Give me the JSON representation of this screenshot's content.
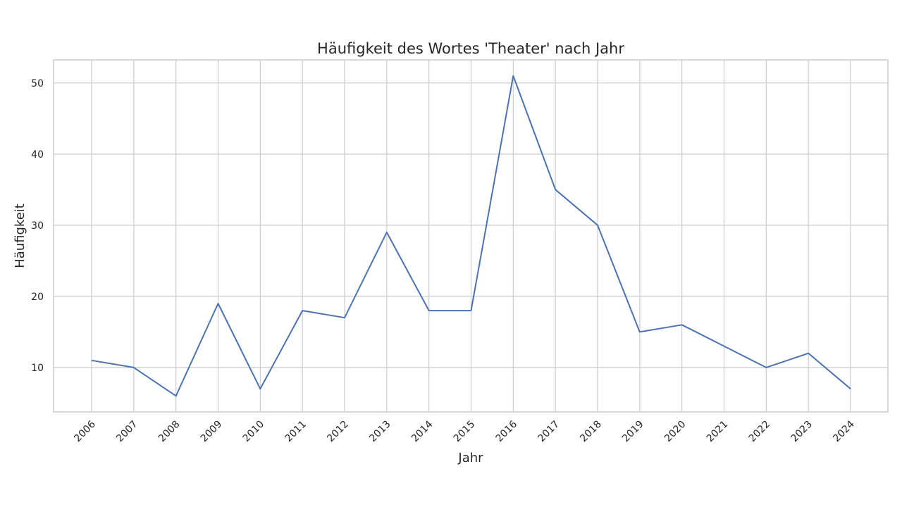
{
  "chart_data": {
    "type": "line",
    "title": "Häufigkeit des Wortes 'Theater' nach Jahr",
    "xlabel": "Jahr",
    "ylabel": "Häufigkeit",
    "categories": [
      "2006",
      "2007",
      "2008",
      "2009",
      "2010",
      "2011",
      "2012",
      "2013",
      "2014",
      "2015",
      "2016",
      "2017",
      "2018",
      "2019",
      "2020",
      "2021",
      "2022",
      "2023",
      "2024"
    ],
    "values": [
      11,
      10,
      6,
      19,
      7,
      18,
      17,
      29,
      18,
      18,
      51,
      35,
      30,
      15,
      16,
      13,
      10,
      12,
      7
    ],
    "ylim": [
      3.75,
      53.25
    ],
    "yticks": [
      10,
      20,
      30,
      40,
      50
    ],
    "grid": true,
    "line_color": "#4c72b0",
    "xtick_rotation": 45
  }
}
